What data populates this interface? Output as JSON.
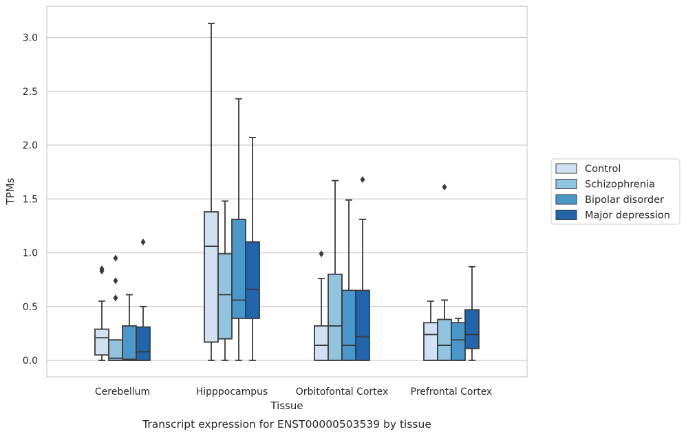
{
  "chart_data": {
    "type": "box",
    "xlabel": "Tissue",
    "ylabel": "TPMs",
    "caption": "Transcript expression for ENST00000503539 by tissue",
    "ylim": [
      -0.15,
      3.3
    ],
    "yticks": [
      "0.0",
      "0.5",
      "1.0",
      "1.5",
      "2.0",
      "2.5",
      "3.0"
    ],
    "grid": "horizontal",
    "legend_position": "right",
    "colors": {
      "Control": "#cfe1f2",
      "Schizophrenia": "#93c4de",
      "Bipolar disorder": "#4a98c9",
      "Major depression": "#2165ab",
      "outline": "#3a3a3a",
      "grid": "#cccccc"
    },
    "categories": [
      "Cerebellum",
      "Hipppocampus",
      "Orbitofontal Cortex",
      "Prefrontal Cortex"
    ],
    "series": [
      {
        "name": "Control",
        "boxes": [
          {
            "min": 0.0,
            "q1": 0.05,
            "median": 0.21,
            "q3": 0.29,
            "max": 0.55,
            "outliers": [
              0.83,
              0.85
            ]
          },
          {
            "min": 0.0,
            "q1": 0.17,
            "median": 1.06,
            "q3": 1.38,
            "max": 3.13,
            "outliers": []
          },
          {
            "min": 0.0,
            "q1": 0.0,
            "median": 0.14,
            "q3": 0.32,
            "max": 0.76,
            "outliers": [
              0.99
            ]
          },
          {
            "min": 0.0,
            "q1": 0.0,
            "median": 0.24,
            "q3": 0.35,
            "max": 0.55,
            "outliers": []
          }
        ]
      },
      {
        "name": "Schizophrenia",
        "boxes": [
          {
            "min": 0.0,
            "q1": 0.0,
            "median": 0.02,
            "q3": 0.19,
            "max": 0.19,
            "outliers": [
              0.58,
              0.74,
              0.95
            ]
          },
          {
            "min": 0.0,
            "q1": 0.2,
            "median": 0.61,
            "q3": 0.99,
            "max": 1.48,
            "outliers": []
          },
          {
            "min": 0.0,
            "q1": 0.0,
            "median": 0.32,
            "q3": 0.8,
            "max": 1.67,
            "outliers": []
          },
          {
            "min": 0.0,
            "q1": 0.0,
            "median": 0.14,
            "q3": 0.38,
            "max": 0.56,
            "outliers": [
              1.61
            ]
          }
        ]
      },
      {
        "name": "Bipolar disorder",
        "boxes": [
          {
            "min": 0.0,
            "q1": 0.0,
            "median": 0.01,
            "q3": 0.32,
            "max": 0.61,
            "outliers": []
          },
          {
            "min": 0.0,
            "q1": 0.39,
            "median": 0.56,
            "q3": 1.31,
            "max": 2.43,
            "outliers": []
          },
          {
            "min": 0.0,
            "q1": 0.0,
            "median": 0.14,
            "q3": 0.65,
            "max": 1.49,
            "outliers": []
          },
          {
            "min": 0.0,
            "q1": 0.0,
            "median": 0.19,
            "q3": 0.35,
            "max": 0.39,
            "outliers": []
          }
        ]
      },
      {
        "name": "Major depression",
        "boxes": [
          {
            "min": 0.0,
            "q1": 0.0,
            "median": 0.08,
            "q3": 0.31,
            "max": 0.5,
            "outliers": [
              1.1
            ]
          },
          {
            "min": 0.0,
            "q1": 0.39,
            "median": 0.66,
            "q3": 1.1,
            "max": 2.07,
            "outliers": []
          },
          {
            "min": 0.0,
            "q1": 0.0,
            "median": 0.22,
            "q3": 0.65,
            "max": 1.31,
            "outliers": [
              1.68
            ]
          },
          {
            "min": 0.0,
            "q1": 0.11,
            "median": 0.24,
            "q3": 0.47,
            "max": 0.87,
            "outliers": []
          }
        ]
      }
    ]
  }
}
